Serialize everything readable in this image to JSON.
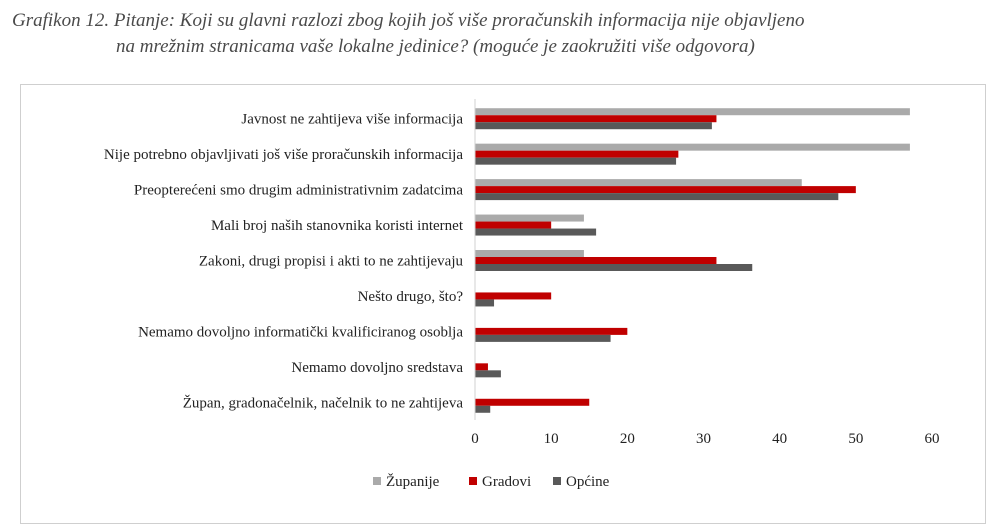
{
  "title": {
    "line1": "Grafikon 12. Pitanje: Koji su glavni razlozi zbog kojih još više proračunskih informacija nije objavljeno",
    "line2": "na mrežnim stranicama vaše lokalne jedinice? (moguće je zaokružiti više odgovora)"
  },
  "chart_data": {
    "type": "bar",
    "orientation": "horizontal",
    "categories": [
      "Javnost ne zahtijeva više informacija",
      "Nije potrebno objavljivati još više proračunskih informacija",
      "Preopterećeni smo drugim administrativnim zadatcima",
      "Mali broj naših stanovnika koristi internet",
      "Zakoni, drugi propisi i akti to ne zahtijevaju",
      "Nešto drugo, što?",
      "Nemamo dovoljno informatički kvalificiranog osoblja",
      "Nemamo dovoljno sredstava",
      "Župan, gradonačelnik, načelnik to ne zahtijeva"
    ],
    "series": [
      {
        "name": "Županije",
        "color": "#aaaaaa",
        "values": [
          57.1,
          57.1,
          42.9,
          14.3,
          14.3,
          0,
          0,
          0,
          0
        ]
      },
      {
        "name": "Gradovi",
        "color": "#c00000",
        "values": [
          31.7,
          26.7,
          50.0,
          10.0,
          31.7,
          10.0,
          20.0,
          1.7,
          15.0
        ]
      },
      {
        "name": "Općine",
        "color": "#595959",
        "values": [
          31.1,
          26.4,
          47.7,
          15.9,
          36.4,
          2.5,
          17.8,
          3.4,
          2.0
        ]
      }
    ],
    "xlim": [
      0,
      60
    ],
    "xticks": [
      "0",
      "10",
      "20",
      "30",
      "40",
      "50",
      "60"
    ],
    "legend_position": "bottom",
    "grid": false
  }
}
